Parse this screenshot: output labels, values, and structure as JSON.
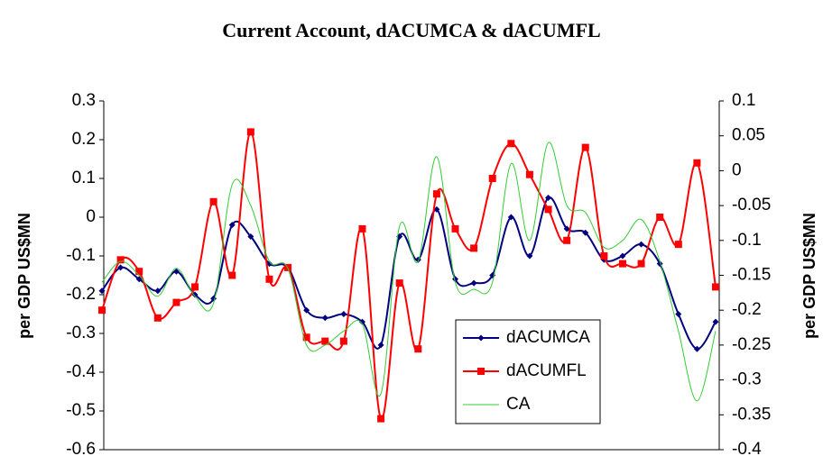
{
  "chart_data": {
    "type": "line",
    "title": "Current Account, dACUMCA & dACUMFL",
    "y_label": "per GDP US$MN",
    "y2_label": "per GDP US$MN",
    "categories": [
      null,
      null,
      null,
      null,
      null,
      null,
      null,
      null,
      null,
      null,
      null,
      null,
      null,
      null,
      null,
      null,
      null,
      null,
      null,
      null,
      null,
      null,
      null,
      null,
      null,
      null,
      null,
      null,
      null,
      null,
      null,
      null,
      null,
      null
    ],
    "ylim": [
      -0.6,
      0.3
    ],
    "yticks": [
      -0.6,
      -0.5,
      -0.4,
      -0.3,
      -0.2,
      -0.1,
      0,
      0.1,
      0.2,
      0.3
    ],
    "y2lim": [
      -0.4,
      0.1
    ],
    "y2ticks": [
      -0.4,
      -0.35,
      -0.3,
      -0.25,
      -0.2,
      -0.15,
      -0.1,
      -0.05,
      0,
      0.05,
      0.1
    ],
    "series": [
      {
        "name": "dACUMCA",
        "color": "#000080",
        "marker": "diamond",
        "values": [
          -0.19,
          -0.13,
          -0.16,
          -0.19,
          -0.14,
          -0.2,
          -0.21,
          -0.02,
          -0.05,
          -0.12,
          -0.13,
          -0.24,
          -0.26,
          -0.25,
          -0.27,
          -0.33,
          -0.05,
          -0.11,
          0.02,
          -0.16,
          -0.17,
          -0.15,
          0.0,
          -0.1,
          0.05,
          -0.03,
          -0.04,
          -0.11,
          -0.1,
          -0.07,
          -0.12,
          -0.25,
          -0.34,
          -0.27
        ]
      },
      {
        "name": "dACUMFL",
        "color": "#ff0000",
        "marker": "square",
        "values": [
          -0.24,
          -0.11,
          -0.14,
          -0.26,
          -0.22,
          -0.18,
          0.04,
          -0.15,
          0.22,
          -0.16,
          -0.13,
          -0.31,
          -0.32,
          -0.32,
          -0.03,
          -0.52,
          -0.17,
          -0.34,
          0.06,
          -0.03,
          -0.08,
          0.1,
          0.19,
          0.11,
          0.02,
          -0.06,
          0.18,
          -0.1,
          -0.12,
          -0.12,
          0.0,
          -0.07,
          0.14,
          -0.18
        ]
      },
      {
        "name": "CA",
        "color": "#33cc33",
        "axis": "y2",
        "values": [
          -0.16,
          -0.13,
          -0.15,
          -0.18,
          -0.14,
          -0.18,
          -0.19,
          -0.02,
          -0.05,
          -0.13,
          -0.14,
          -0.25,
          -0.25,
          -0.23,
          -0.22,
          -0.32,
          -0.08,
          -0.13,
          0.02,
          -0.16,
          -0.17,
          -0.16,
          0.01,
          -0.1,
          0.04,
          -0.05,
          -0.06,
          -0.11,
          -0.1,
          -0.07,
          -0.13,
          -0.23,
          -0.33,
          -0.23
        ]
      }
    ]
  }
}
